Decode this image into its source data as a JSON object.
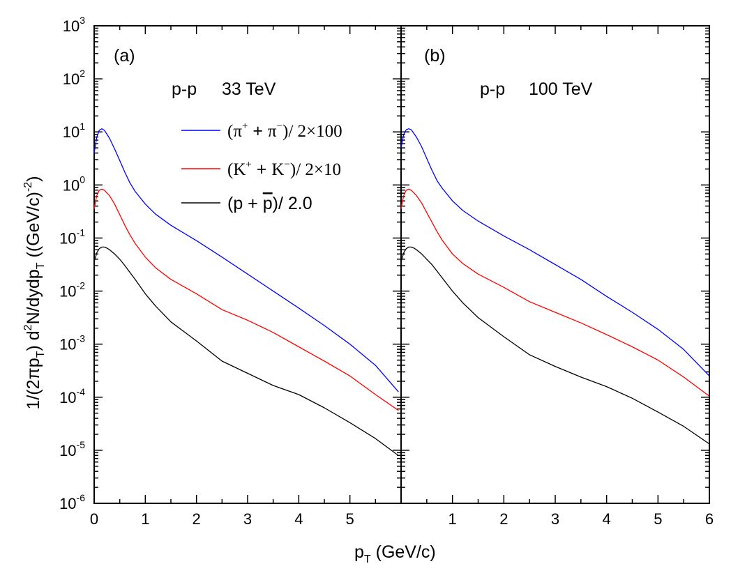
{
  "chart_data": [
    {
      "type": "line",
      "panel_label": "(a)",
      "system": "p-p",
      "energy": "33 TeV",
      "xlim": [
        0,
        6
      ],
      "ylim_log10": [
        -6,
        3
      ],
      "x_ticks": [
        "0",
        "1",
        "2",
        "3",
        "4",
        "5"
      ],
      "series": [
        {
          "name": "pion",
          "color": "#0000ff",
          "x": [
            0,
            0.05,
            0.1,
            0.15,
            0.2,
            0.3,
            0.4,
            0.5,
            0.6,
            0.7,
            0.8,
            1.0,
            1.2,
            1.5,
            2.0,
            2.5,
            3.0,
            3.5,
            4.0,
            4.5,
            5.0,
            5.5,
            5.95
          ],
          "y": [
            0.6,
            0.9,
            1.03,
            1.06,
            1.03,
            0.88,
            0.68,
            0.46,
            0.24,
            0.04,
            -0.12,
            -0.36,
            -0.55,
            -0.76,
            -1.05,
            -1.36,
            -1.68,
            -2.0,
            -2.32,
            -2.65,
            -3.0,
            -3.4,
            -3.9
          ]
        },
        {
          "name": "kaon",
          "color": "#ff0000",
          "x": [
            0,
            0.05,
            0.1,
            0.15,
            0.2,
            0.3,
            0.4,
            0.5,
            0.6,
            0.7,
            0.8,
            1.0,
            1.2,
            1.5,
            2.0,
            2.5,
            3.0,
            3.5,
            4.0,
            4.5,
            5.0,
            5.5,
            5.95
          ],
          "y": [
            -0.45,
            -0.2,
            -0.1,
            -0.08,
            -0.1,
            -0.2,
            -0.36,
            -0.56,
            -0.76,
            -0.94,
            -1.1,
            -1.36,
            -1.56,
            -1.78,
            -2.05,
            -2.35,
            -2.55,
            -2.78,
            -3.05,
            -3.32,
            -3.6,
            -3.95,
            -4.25
          ]
        },
        {
          "name": "proton",
          "color": "#000000",
          "x": [
            0,
            0.05,
            0.1,
            0.15,
            0.2,
            0.25,
            0.3,
            0.4,
            0.5,
            0.6,
            0.8,
            1.0,
            1.2,
            1.5,
            2.0,
            2.5,
            3.0,
            3.5,
            4.0,
            4.5,
            5.0,
            5.5,
            5.95
          ],
          "y": [
            -1.45,
            -1.28,
            -1.2,
            -1.17,
            -1.17,
            -1.19,
            -1.22,
            -1.3,
            -1.4,
            -1.52,
            -1.78,
            -2.05,
            -2.28,
            -2.58,
            -2.94,
            -3.32,
            -3.55,
            -3.78,
            -3.95,
            -4.2,
            -4.48,
            -4.78,
            -5.1
          ]
        }
      ]
    },
    {
      "type": "line",
      "panel_label": "(b)",
      "system": "p-p",
      "energy": "100 TeV",
      "xlim": [
        0,
        6
      ],
      "ylim_log10": [
        -6,
        3
      ],
      "x_ticks": [
        "1",
        "2",
        "3",
        "4",
        "5",
        "6"
      ],
      "series": [
        {
          "name": "pion",
          "color": "#0000ff",
          "x": [
            0,
            0.05,
            0.1,
            0.15,
            0.2,
            0.3,
            0.4,
            0.5,
            0.6,
            0.7,
            0.8,
            1.0,
            1.2,
            1.5,
            2.0,
            2.5,
            3.0,
            3.5,
            4.0,
            4.5,
            5.0,
            5.5,
            6.0
          ],
          "y": [
            0.7,
            0.95,
            1.04,
            1.06,
            1.04,
            0.9,
            0.72,
            0.5,
            0.28,
            0.08,
            -0.06,
            -0.3,
            -0.48,
            -0.68,
            -0.96,
            -1.22,
            -1.5,
            -1.78,
            -2.1,
            -2.4,
            -2.72,
            -3.1,
            -3.6
          ]
        },
        {
          "name": "kaon",
          "color": "#ff0000",
          "x": [
            0,
            0.05,
            0.1,
            0.15,
            0.2,
            0.3,
            0.4,
            0.5,
            0.6,
            0.7,
            0.8,
            1.0,
            1.2,
            1.5,
            2.0,
            2.5,
            3.0,
            3.5,
            4.0,
            4.5,
            5.0,
            5.5,
            6.0
          ],
          "y": [
            -0.45,
            -0.2,
            -0.1,
            -0.08,
            -0.1,
            -0.2,
            -0.34,
            -0.52,
            -0.7,
            -0.88,
            -1.04,
            -1.3,
            -1.48,
            -1.68,
            -1.93,
            -2.2,
            -2.4,
            -2.6,
            -2.82,
            -3.05,
            -3.3,
            -3.62,
            -3.98
          ]
        },
        {
          "name": "proton",
          "color": "#000000",
          "x": [
            0,
            0.05,
            0.1,
            0.15,
            0.2,
            0.25,
            0.3,
            0.4,
            0.5,
            0.6,
            0.8,
            1.0,
            1.2,
            1.5,
            2.0,
            2.5,
            3.0,
            3.5,
            4.0,
            4.5,
            5.0,
            5.5,
            6.0
          ],
          "y": [
            -1.45,
            -1.28,
            -1.2,
            -1.17,
            -1.17,
            -1.19,
            -1.22,
            -1.3,
            -1.4,
            -1.5,
            -1.75,
            -2.0,
            -2.22,
            -2.5,
            -2.86,
            -3.2,
            -3.42,
            -3.62,
            -3.8,
            -4.02,
            -4.28,
            -4.55,
            -4.88
          ]
        }
      ]
    }
  ],
  "y_ticks": [
    {
      "base": "10",
      "exp": "3"
    },
    {
      "base": "10",
      "exp": "2"
    },
    {
      "base": "10",
      "exp": "1"
    },
    {
      "base": "10",
      "exp": "0"
    },
    {
      "base": "10",
      "exp": "-1"
    },
    {
      "base": "10",
      "exp": "-2"
    },
    {
      "base": "10",
      "exp": "-3"
    },
    {
      "base": "10",
      "exp": "-4"
    },
    {
      "base": "10",
      "exp": "-5"
    },
    {
      "base": "10",
      "exp": "-6"
    }
  ],
  "y_axis_label": {
    "p1": "1/(2",
    "pi": "π",
    "p2": "p",
    "sub_T1": "T",
    "p3": ") d",
    "sup_2": "2",
    "p4": "N/dydp",
    "sub_T2": "T",
    "p5": " ((GeV/c)",
    "sup_m2": "-2",
    "p6": ")"
  },
  "x_axis_label": {
    "p1": "p",
    "sub": "T",
    "p2": " (GeV/c)"
  },
  "legend": [
    {
      "color": "#0000ff",
      "open": "(",
      "s1": "π",
      "sup1": "+",
      "plus": " + ",
      "s2": "π",
      "sup2": "−",
      "close": ")/ ",
      "scale": "2×100"
    },
    {
      "color": "#ff0000",
      "open": "(",
      "s1": "K",
      "sup1": "+",
      "plus": " + ",
      "s2": "K",
      "sup2": "−",
      "close": ")/ ",
      "scale": "2×10"
    },
    {
      "color": "#000000",
      "open": "(p + ",
      "bar": "p",
      "close": ")/ 2.0"
    }
  ]
}
